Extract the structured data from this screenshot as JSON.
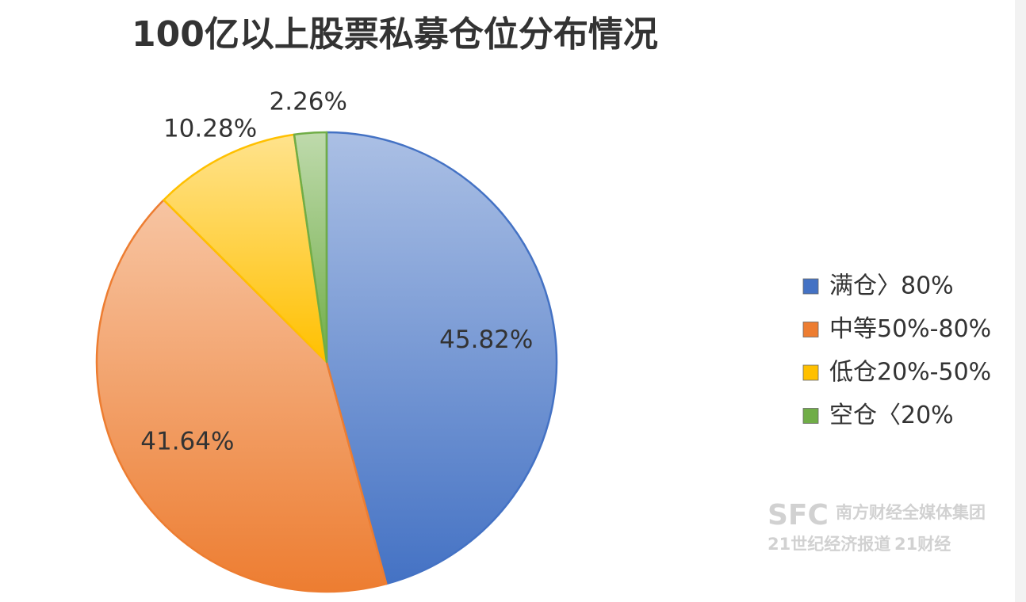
{
  "chart_data": {
    "type": "pie",
    "title": "100亿以上股票私募仓位分布情况",
    "categories": [
      "满仓〉80%",
      "中等50%-80%",
      "低仓20%-50%",
      "空仓〈20%"
    ],
    "values": [
      45.82,
      41.64,
      10.28,
      2.26
    ],
    "value_labels": [
      "45.82%",
      "41.64%",
      "10.28%",
      "2.26%"
    ],
    "colors": [
      "#4472c4",
      "#ed7d31",
      "#ffc000",
      "#70ad47"
    ],
    "legend": "right"
  },
  "watermark": {
    "logo": "SFC",
    "group": "南方财经全媒体集团",
    "paper": "21世纪经济报道",
    "app": "21财经"
  }
}
